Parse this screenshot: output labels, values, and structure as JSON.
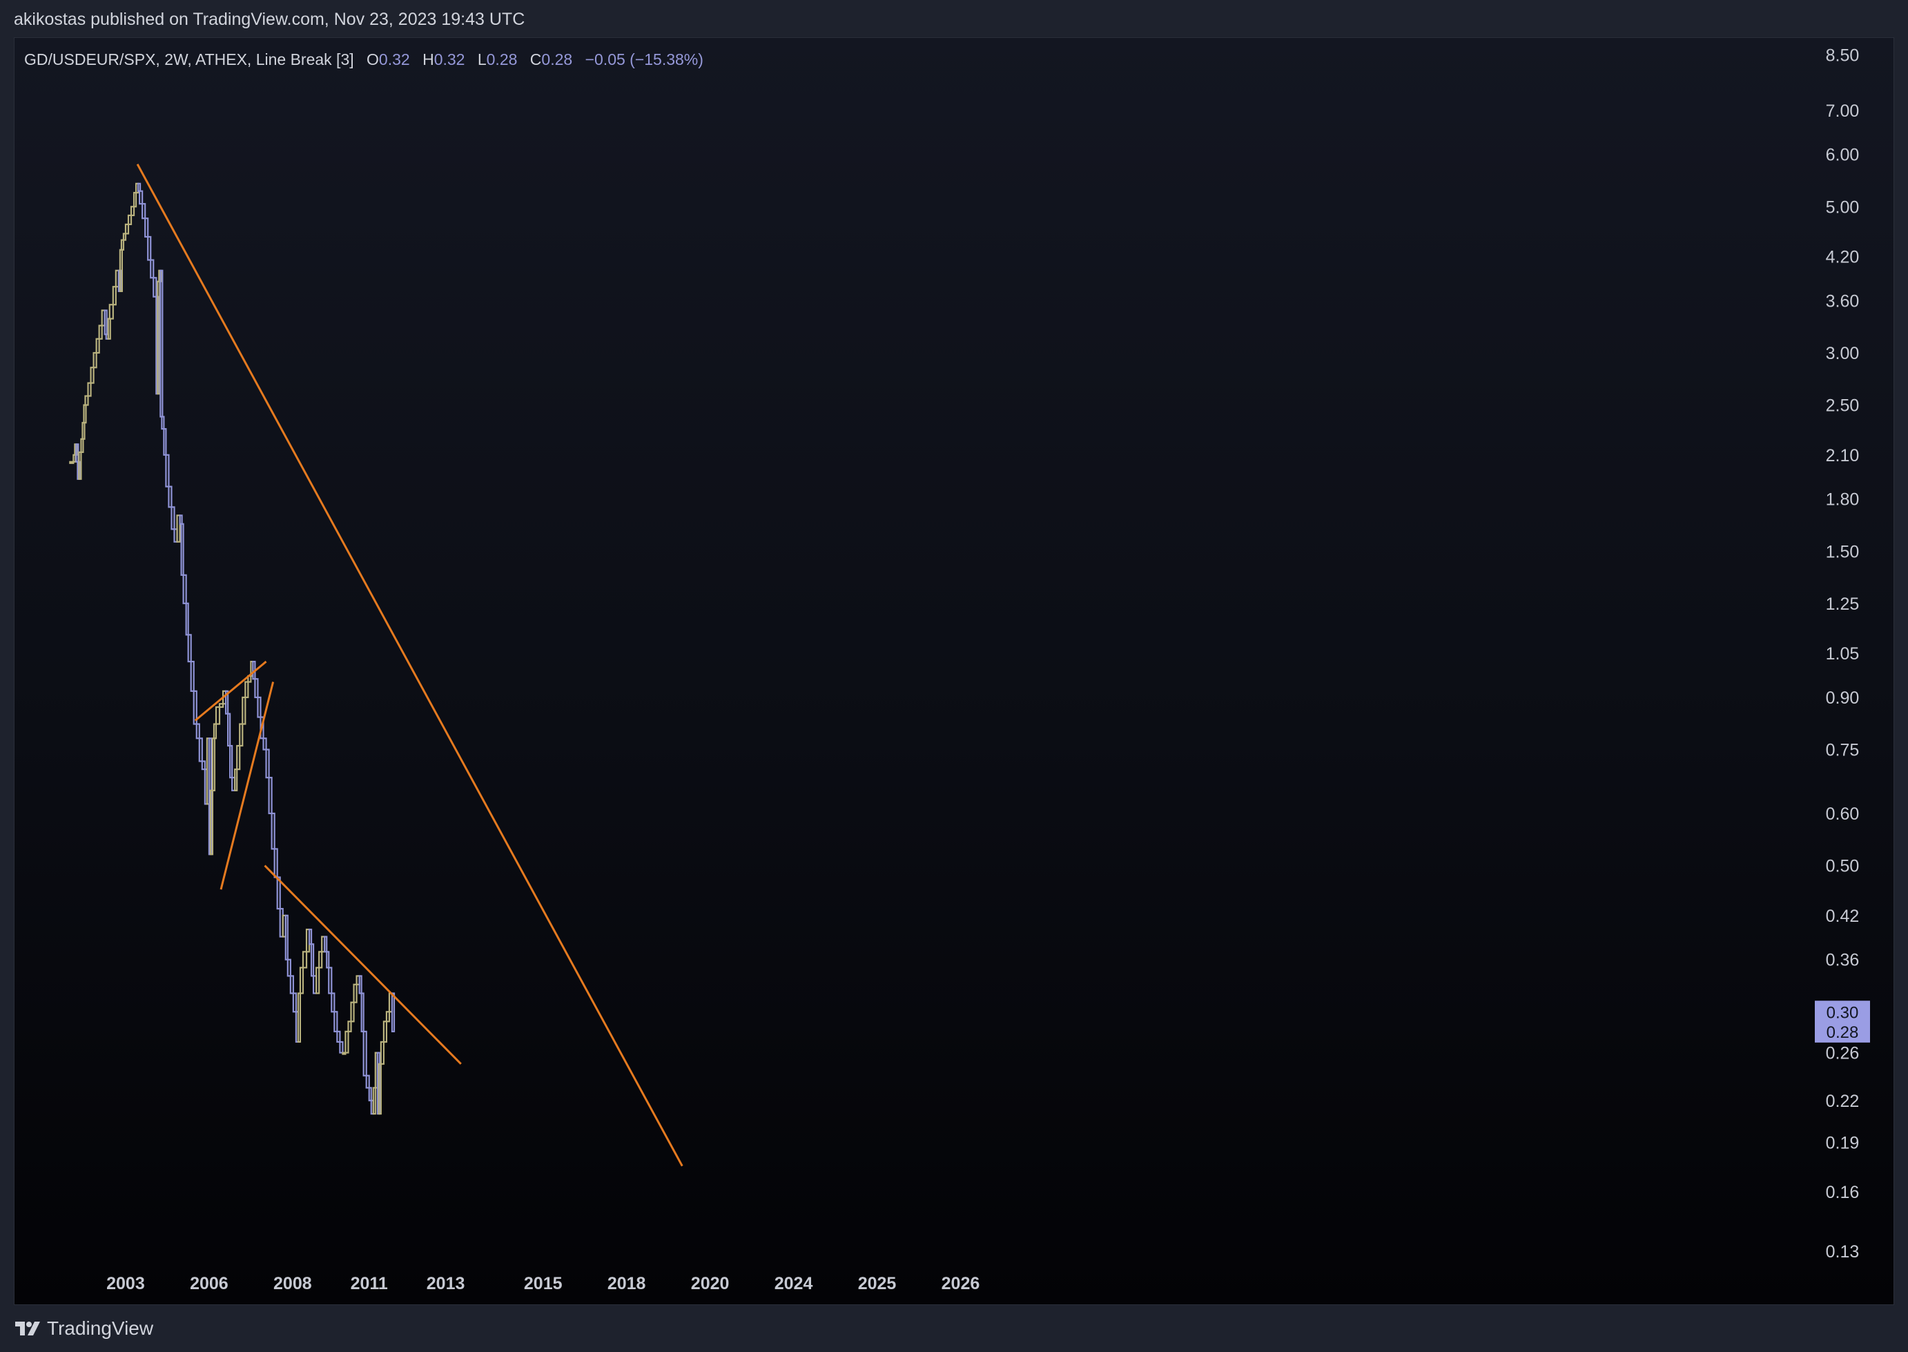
{
  "header": {
    "published_text": "akikostas published on TradingView.com, Nov 23, 2023 19:43 UTC"
  },
  "legend": {
    "symbol": "GD/USDEUR/SPX, 2W, ATHEX, Line Break [3]",
    "open_label": "O",
    "open_value": "0.32",
    "high_label": "H",
    "high_value": "0.32",
    "low_label": "L",
    "low_value": "0.28",
    "close_label": "C",
    "close_value": "0.28",
    "change": "−0.05 (−15.38%)"
  },
  "footer": {
    "brand": "TradingView",
    "logo_icon": "tradingview-logo-icon"
  },
  "colors": {
    "up": "#b9b27e",
    "down": "#8f93d6",
    "trendline": "#e57a1f",
    "badge": "#9a9de4",
    "background_top": "#131621",
    "background_bottom": "#030306"
  },
  "price_badges": [
    "0.30",
    "0.28"
  ],
  "chart_data": {
    "type": "line-break",
    "title": "GD/USDEUR/SPX, 2W, ATHEX, Line Break [3]",
    "y_scale": "log",
    "ylim": [
      0.12,
      8.8
    ],
    "xlim": [
      2001.8,
      2027.0
    ],
    "grid": false,
    "y_ticks": [
      "8.50",
      "7.00",
      "6.00",
      "5.00",
      "4.20",
      "3.60",
      "3.00",
      "2.50",
      "2.10",
      "1.80",
      "1.50",
      "1.25",
      "1.05",
      "0.90",
      "0.75",
      "0.60",
      "0.50",
      "0.42",
      "0.36",
      "0.26",
      "0.22",
      "0.19",
      "0.16",
      "0.13"
    ],
    "x_ticks": [
      {
        "label": "2003",
        "year": 2003.0
      },
      {
        "label": "2006",
        "year": 2004.2
      },
      {
        "label": "2008",
        "year": 2005.4
      },
      {
        "label": "2011",
        "year": 2006.5
      },
      {
        "label": "2013",
        "year": 2007.6
      },
      {
        "label": "2015",
        "year": 2009.0
      },
      {
        "label": "2018",
        "year": 2010.2
      },
      {
        "label": "2020",
        "year": 2011.4
      },
      {
        "label": "2024",
        "year": 2012.6
      },
      {
        "label": "2025",
        "year": 2013.8
      },
      {
        "label": "2026",
        "year": 2015.0
      }
    ],
    "path": [
      [
        2002.2,
        2.05
      ],
      [
        2002.25,
        2.05
      ],
      [
        2002.27,
        2.1
      ],
      [
        2002.29,
        2.18
      ],
      [
        2002.31,
        2.05
      ],
      [
        2002.33,
        1.93
      ],
      [
        2002.36,
        2.12
      ],
      [
        2002.38,
        2.22
      ],
      [
        2002.4,
        2.35
      ],
      [
        2002.42,
        2.5
      ],
      [
        2002.46,
        2.58
      ],
      [
        2002.5,
        2.7
      ],
      [
        2002.54,
        2.85
      ],
      [
        2002.58,
        3.0
      ],
      [
        2002.62,
        3.15
      ],
      [
        2002.66,
        3.3
      ],
      [
        2002.7,
        3.48
      ],
      [
        2002.72,
        3.2
      ],
      [
        2002.75,
        3.15
      ],
      [
        2002.77,
        3.38
      ],
      [
        2002.82,
        3.55
      ],
      [
        2002.86,
        3.78
      ],
      [
        2002.9,
        4.0
      ],
      [
        2002.92,
        3.72
      ],
      [
        2002.94,
        4.3
      ],
      [
        2002.97,
        4.45
      ],
      [
        2003.0,
        4.55
      ],
      [
        2003.04,
        4.7
      ],
      [
        2003.08,
        4.85
      ],
      [
        2003.12,
        5.0
      ],
      [
        2003.15,
        5.25
      ],
      [
        2003.18,
        5.42
      ],
      [
        2003.2,
        5.28
      ],
      [
        2003.24,
        5.05
      ],
      [
        2003.28,
        4.8
      ],
      [
        2003.32,
        4.5
      ],
      [
        2003.36,
        4.15
      ],
      [
        2003.4,
        3.9
      ],
      [
        2003.44,
        3.65
      ],
      [
        2003.46,
        2.6
      ],
      [
        2003.48,
        3.85
      ],
      [
        2003.5,
        4.0
      ],
      [
        2003.52,
        2.4
      ],
      [
        2003.55,
        2.3
      ],
      [
        2003.58,
        2.1
      ],
      [
        2003.62,
        1.88
      ],
      [
        2003.66,
        1.75
      ],
      [
        2003.7,
        1.62
      ],
      [
        2003.74,
        1.55
      ],
      [
        2003.78,
        1.7
      ],
      [
        2003.8,
        1.65
      ],
      [
        2003.83,
        1.38
      ],
      [
        2003.87,
        1.25
      ],
      [
        2003.9,
        1.12
      ],
      [
        2003.94,
        1.02
      ],
      [
        2003.98,
        0.92
      ],
      [
        2004.02,
        0.82
      ],
      [
        2004.06,
        0.78
      ],
      [
        2004.1,
        0.72
      ],
      [
        2004.14,
        0.7
      ],
      [
        2004.17,
        0.62
      ],
      [
        2004.2,
        0.78
      ],
      [
        2004.22,
        0.52
      ],
      [
        2004.25,
        0.65
      ],
      [
        2004.27,
        0.78
      ],
      [
        2004.3,
        0.82
      ],
      [
        2004.35,
        0.87
      ],
      [
        2004.4,
        0.88
      ],
      [
        2004.44,
        0.92
      ],
      [
        2004.47,
        0.85
      ],
      [
        2004.5,
        0.76
      ],
      [
        2004.53,
        0.68
      ],
      [
        2004.57,
        0.65
      ],
      [
        2004.6,
        0.7
      ],
      [
        2004.64,
        0.76
      ],
      [
        2004.68,
        0.82
      ],
      [
        2004.72,
        0.9
      ],
      [
        2004.76,
        0.95
      ],
      [
        2004.8,
        0.97
      ],
      [
        2004.83,
        1.02
      ],
      [
        2004.86,
        0.96
      ],
      [
        2004.9,
        0.9
      ],
      [
        2004.94,
        0.84
      ],
      [
        2004.98,
        0.78
      ],
      [
        2005.02,
        0.75
      ],
      [
        2005.06,
        0.68
      ],
      [
        2005.1,
        0.6
      ],
      [
        2005.14,
        0.53
      ],
      [
        2005.18,
        0.48
      ],
      [
        2005.22,
        0.43
      ],
      [
        2005.26,
        0.39
      ],
      [
        2005.3,
        0.42
      ],
      [
        2005.33,
        0.36
      ],
      [
        2005.37,
        0.34
      ],
      [
        2005.41,
        0.32
      ],
      [
        2005.45,
        0.3
      ],
      [
        2005.48,
        0.27
      ],
      [
        2005.51,
        0.32
      ],
      [
        2005.55,
        0.35
      ],
      [
        2005.6,
        0.37
      ],
      [
        2005.64,
        0.4
      ],
      [
        2005.67,
        0.38
      ],
      [
        2005.7,
        0.34
      ],
      [
        2005.74,
        0.32
      ],
      [
        2005.78,
        0.35
      ],
      [
        2005.82,
        0.37
      ],
      [
        2005.86,
        0.39
      ],
      [
        2005.89,
        0.37
      ],
      [
        2005.92,
        0.35
      ],
      [
        2005.96,
        0.32
      ],
      [
        2006.0,
        0.3
      ],
      [
        2006.04,
        0.28
      ],
      [
        2006.08,
        0.27
      ],
      [
        2006.12,
        0.26
      ],
      [
        2006.16,
        0.26
      ],
      [
        2006.2,
        0.28
      ],
      [
        2006.24,
        0.29
      ],
      [
        2006.28,
        0.31
      ],
      [
        2006.32,
        0.33
      ],
      [
        2006.36,
        0.34
      ],
      [
        2006.39,
        0.32
      ],
      [
        2006.42,
        0.28
      ],
      [
        2006.46,
        0.24
      ],
      [
        2006.5,
        0.23
      ],
      [
        2006.53,
        0.22
      ],
      [
        2006.56,
        0.21
      ],
      [
        2006.59,
        0.23
      ],
      [
        2006.62,
        0.26
      ],
      [
        2006.64,
        0.21
      ],
      [
        2006.67,
        0.25
      ],
      [
        2006.71,
        0.27
      ],
      [
        2006.75,
        0.29
      ],
      [
        2006.79,
        0.3
      ],
      [
        2006.83,
        0.32
      ],
      [
        2006.86,
        0.28
      ]
    ],
    "trendlines": [
      {
        "from": [
          2003.17,
          5.8
        ],
        "to": [
          2011.0,
          0.175
        ]
      },
      {
        "from": [
          2004.0,
          0.83
        ],
        "to": [
          2005.02,
          1.02
        ]
      },
      {
        "from": [
          2004.37,
          0.46
        ],
        "to": [
          2005.12,
          0.95
        ]
      },
      {
        "from": [
          2005.0,
          0.5
        ],
        "to": [
          2007.82,
          0.25
        ]
      }
    ]
  }
}
